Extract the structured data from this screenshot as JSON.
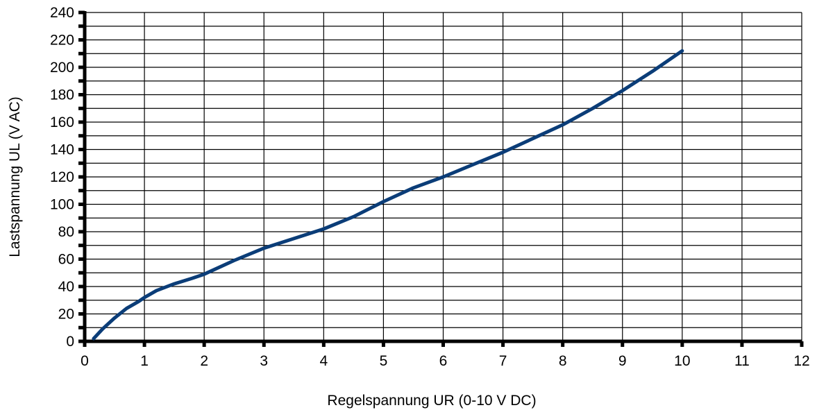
{
  "chart_data": {
    "type": "line",
    "title": "",
    "xlabel": "Regelspannung UR (0-10 V DC)",
    "ylabel": "Lastspannung UL (V AC)",
    "xlim": [
      0,
      12
    ],
    "ylim": [
      0,
      240
    ],
    "x_ticks": [
      "0",
      "1",
      "2",
      "3",
      "4",
      "5",
      "6",
      "7",
      "8",
      "9",
      "10",
      "11",
      "12"
    ],
    "y_ticks": [
      "0",
      "20",
      "40",
      "60",
      "80",
      "100",
      "120",
      "140",
      "160",
      "180",
      "200",
      "220",
      "240"
    ],
    "x_major_step": 1,
    "y_major_step": 20,
    "y_minor_step": 10,
    "grid": true,
    "series": [
      {
        "color": "#0b3d78",
        "x": [
          0.15,
          0.3,
          0.5,
          0.7,
          0.9,
          1.0,
          1.2,
          1.5,
          1.8,
          2.0,
          2.5,
          3.0,
          3.5,
          4.0,
          4.5,
          5.0,
          5.5,
          6.0,
          6.5,
          7.0,
          7.5,
          8.0,
          8.5,
          9.0,
          9.5,
          10.0
        ],
        "y": [
          2,
          9,
          17,
          24,
          29,
          32,
          37,
          42,
          46,
          49,
          59,
          68,
          75,
          82,
          91,
          102,
          112,
          120,
          129,
          138,
          148,
          158,
          170,
          183,
          197,
          212
        ]
      }
    ]
  }
}
